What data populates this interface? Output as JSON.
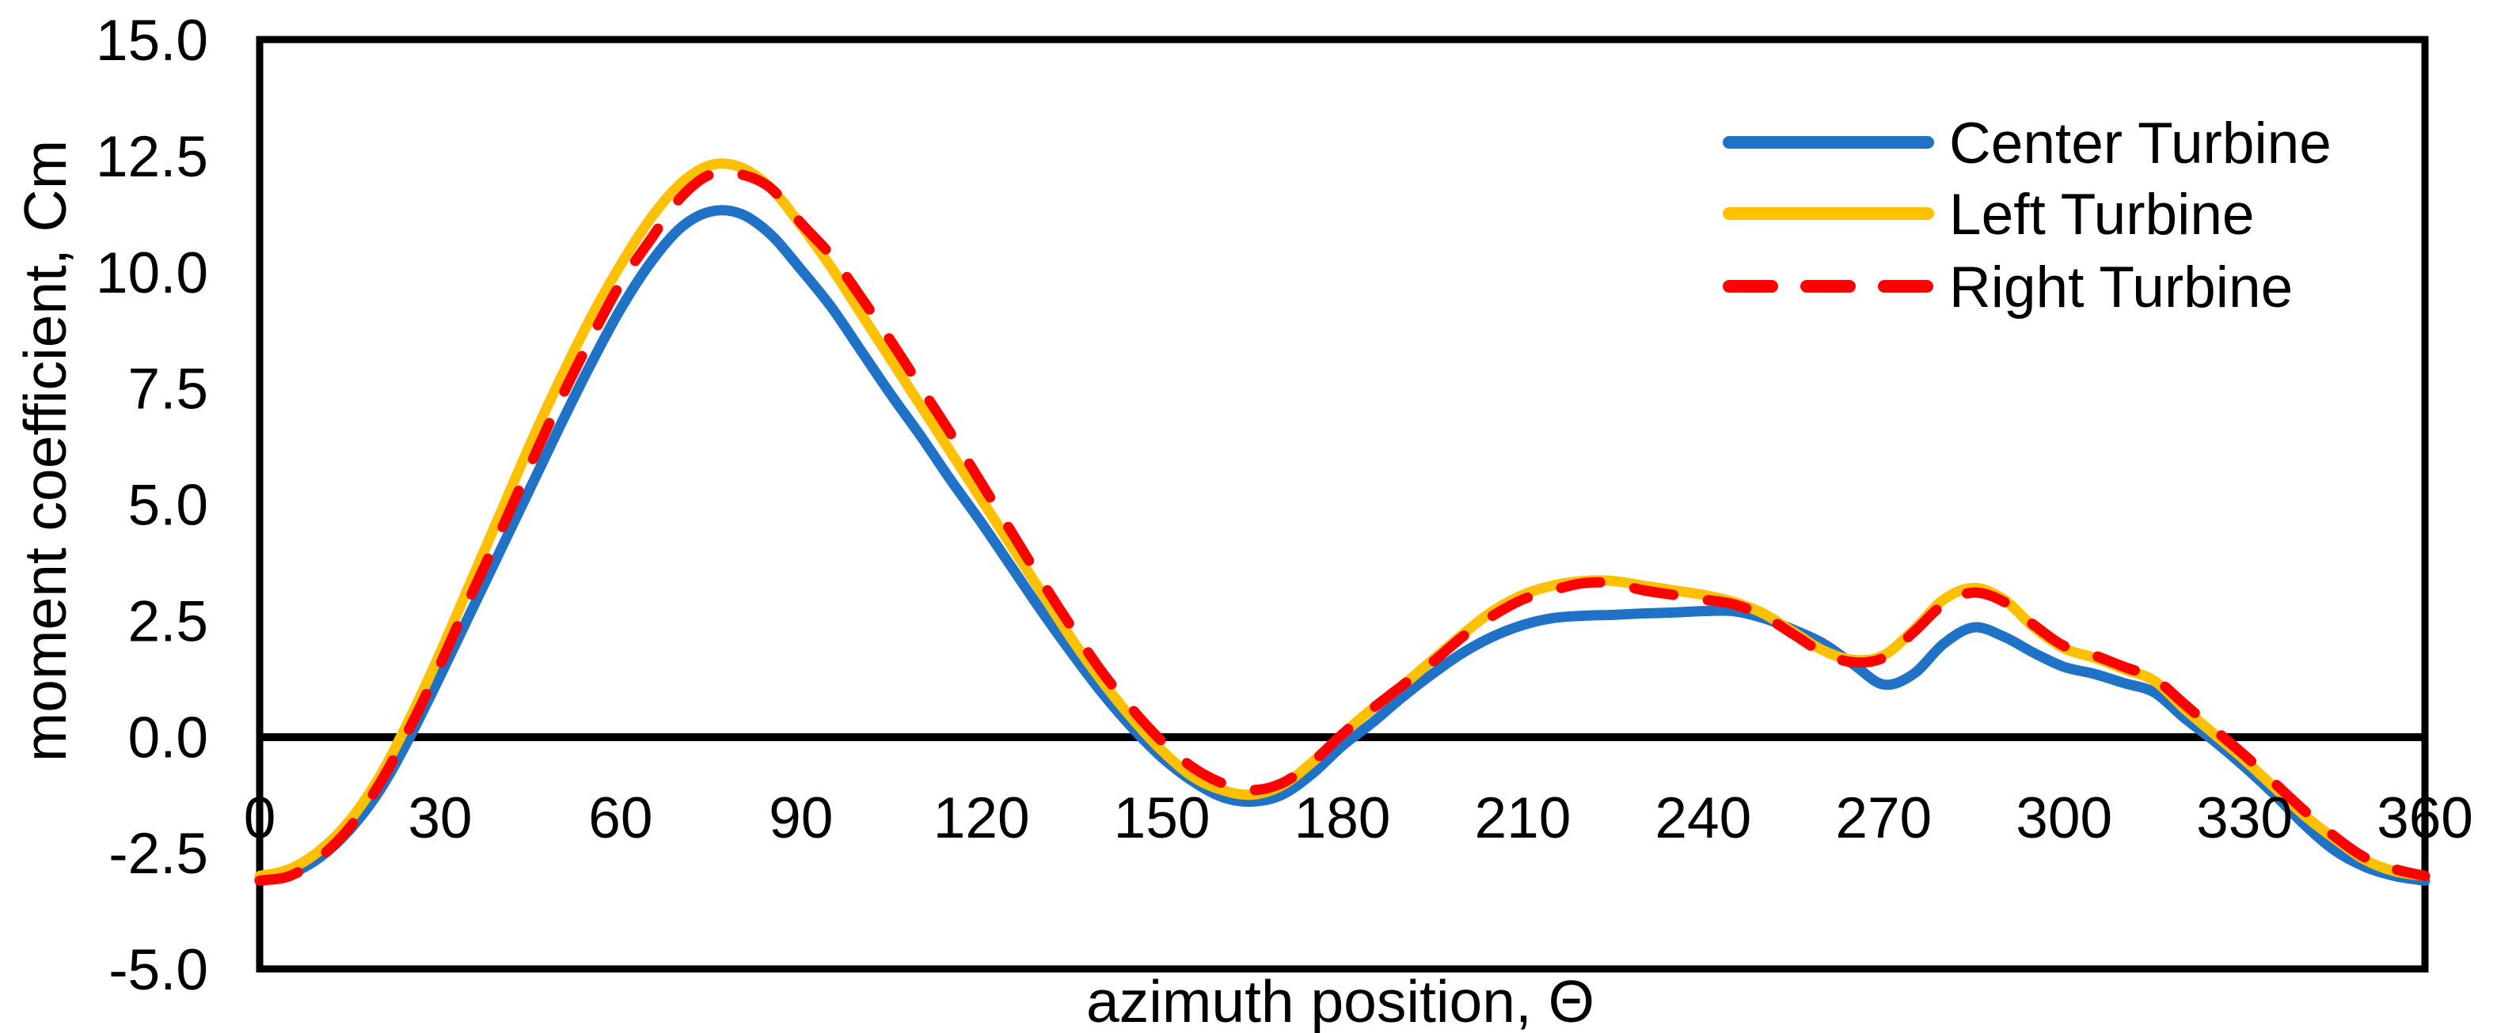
{
  "chart_data": {
    "type": "line",
    "title": "",
    "xlabel": "azimuth position, Θ",
    "ylabel": "moment coefficient, Cm",
    "xlim": [
      0,
      360
    ],
    "ylim": [
      -5.0,
      15.0
    ],
    "grid": false,
    "legend_position": "inside-top-right",
    "x_ticks": [
      "0",
      "30",
      "60",
      "90",
      "120",
      "150",
      "180",
      "210",
      "240",
      "270",
      "300",
      "330",
      "360"
    ],
    "y_ticks": [
      "15.0",
      "12.5",
      "10.0",
      "7.5",
      "5.0",
      "2.5",
      "0.0",
      "-2.5",
      "-5.0"
    ],
    "x": [
      0,
      5,
      10,
      15,
      20,
      25,
      30,
      35,
      40,
      45,
      50,
      55,
      60,
      65,
      70,
      75,
      80,
      85,
      90,
      95,
      100,
      105,
      110,
      115,
      120,
      125,
      130,
      135,
      140,
      145,
      150,
      155,
      160,
      165,
      170,
      175,
      180,
      185,
      190,
      195,
      200,
      205,
      210,
      215,
      220,
      225,
      230,
      235,
      240,
      245,
      250,
      255,
      260,
      265,
      270,
      275,
      280,
      285,
      290,
      295,
      300,
      305,
      310,
      315,
      320,
      325,
      330,
      335,
      340,
      345,
      350,
      355,
      360
    ],
    "series": [
      {
        "name": "Center Turbine",
        "color": "#1F72C6",
        "style": "solid",
        "values": [
          -3.05,
          -2.95,
          -2.6,
          -2.0,
          -1.15,
          0.0,
          1.3,
          2.65,
          4.0,
          5.35,
          6.7,
          8.0,
          9.2,
          10.2,
          10.95,
          11.3,
          11.25,
          10.8,
          10.05,
          9.25,
          8.3,
          7.35,
          6.45,
          5.5,
          4.6,
          3.65,
          2.7,
          1.8,
          0.95,
          0.2,
          -0.45,
          -0.95,
          -1.3,
          -1.4,
          -1.25,
          -0.8,
          -0.2,
          0.3,
          0.85,
          1.35,
          1.8,
          2.15,
          2.4,
          2.55,
          2.6,
          2.62,
          2.65,
          2.67,
          2.7,
          2.7,
          2.55,
          2.3,
          2.0,
          1.55,
          1.12,
          1.35,
          2.0,
          2.35,
          2.15,
          1.8,
          1.5,
          1.35,
          1.15,
          0.95,
          0.4,
          -0.1,
          -0.65,
          -1.25,
          -1.9,
          -2.45,
          -2.8,
          -3.0,
          -3.1
        ]
      },
      {
        "name": "Left Turbine",
        "color": "#FFC000",
        "style": "solid",
        "values": [
          -3.0,
          -2.85,
          -2.45,
          -1.8,
          -0.85,
          0.4,
          1.8,
          3.3,
          4.8,
          6.3,
          7.7,
          9.0,
          10.15,
          11.15,
          11.9,
          12.3,
          12.25,
          11.8,
          11.0,
          10.1,
          9.1,
          8.1,
          7.1,
          6.1,
          5.1,
          4.1,
          3.1,
          2.1,
          1.2,
          0.4,
          -0.3,
          -0.85,
          -1.15,
          -1.25,
          -1.05,
          -0.55,
          0.05,
          0.6,
          1.1,
          1.65,
          2.2,
          2.7,
          3.05,
          3.25,
          3.35,
          3.35,
          3.25,
          3.15,
          3.05,
          2.9,
          2.65,
          2.25,
          1.85,
          1.65,
          1.75,
          2.3,
          2.95,
          3.2,
          2.95,
          2.35,
          1.9,
          1.7,
          1.45,
          1.2,
          0.6,
          0.05,
          -0.5,
          -1.1,
          -1.7,
          -2.2,
          -2.65,
          -2.9,
          -3.0
        ]
      },
      {
        "name": "Right Turbine",
        "color": "#FF0000",
        "style": "dashed",
        "values": [
          -3.1,
          -3.0,
          -2.6,
          -1.95,
          -1.0,
          0.2,
          1.55,
          3.0,
          4.4,
          5.85,
          7.25,
          8.55,
          9.75,
          10.7,
          11.6,
          12.1,
          12.1,
          11.8,
          11.05,
          10.35,
          9.45,
          8.5,
          7.5,
          6.5,
          5.45,
          4.4,
          3.35,
          2.35,
          1.4,
          0.6,
          -0.1,
          -0.65,
          -1.0,
          -1.15,
          -1.0,
          -0.55,
          0.05,
          0.6,
          1.1,
          1.6,
          2.15,
          2.6,
          2.95,
          3.15,
          3.3,
          3.3,
          3.15,
          3.05,
          2.95,
          2.85,
          2.6,
          2.2,
          1.8,
          1.6,
          1.7,
          2.25,
          2.85,
          3.1,
          2.9,
          2.4,
          1.95,
          1.75,
          1.5,
          1.25,
          0.7,
          0.15,
          -0.4,
          -1.0,
          -1.6,
          -2.15,
          -2.6,
          -2.85,
          -3.0
        ]
      }
    ],
    "axis_color": "#000000",
    "zero_line": true
  }
}
